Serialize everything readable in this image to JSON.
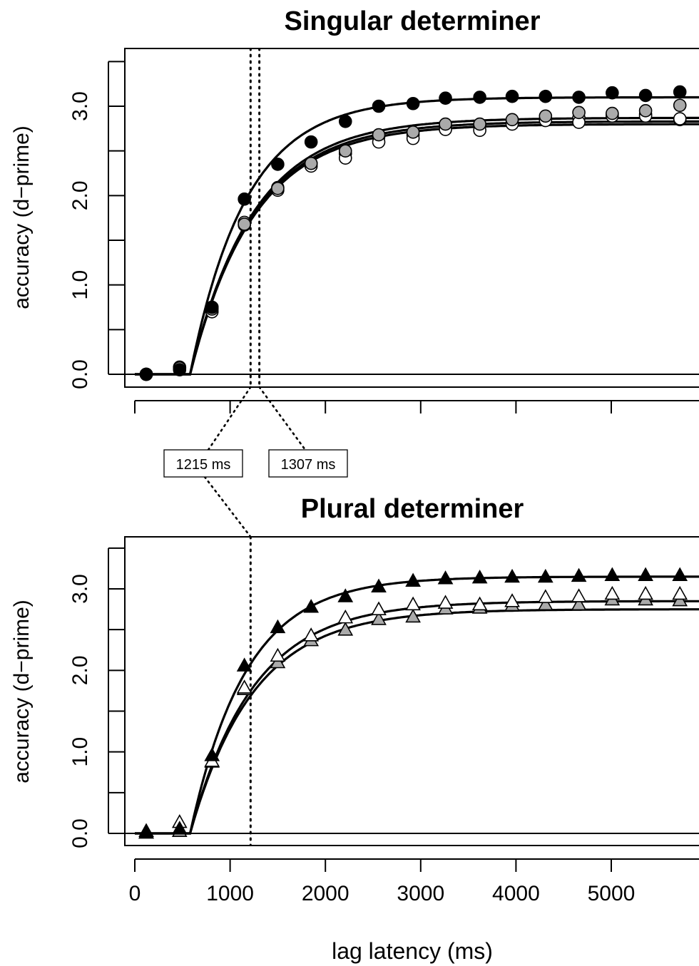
{
  "chart_data": [
    {
      "type": "line",
      "title": "Singular determiner",
      "ylabel": "accuracy (d−prime)",
      "xlabel": "",
      "xlim": [
        0,
        5850
      ],
      "ylim": [
        -0.15,
        3.65
      ],
      "yticks": [
        0.0,
        0.5,
        1.0,
        1.5,
        2.0,
        2.5,
        3.0,
        3.5
      ],
      "ytick_labels": [
        {
          "value": 0.0,
          "label": "0.0"
        },
        {
          "value": 1.0,
          "label": "1.0"
        },
        {
          "value": 2.0,
          "label": "2.0"
        },
        {
          "value": 3.0,
          "label": "3.0"
        }
      ],
      "xticks": [
        0,
        1000,
        2000,
        3000,
        4000,
        5000
      ],
      "marker": "circle",
      "vlines": [
        {
          "x": 1215,
          "label": "1215 ms"
        },
        {
          "x": 1307,
          "label": "1307 ms"
        }
      ],
      "x": [
        120,
        470,
        810,
        1150,
        1500,
        1850,
        2210,
        2560,
        2920,
        3260,
        3620,
        3960,
        4310,
        4660,
        5010,
        5360,
        5720
      ],
      "series": [
        {
          "fill": "#000000",
          "curve": {
            "asymptote": 3.1,
            "rate": 0.0017,
            "intercept": 580
          },
          "values": [
            0.0,
            0.05,
            0.75,
            1.96,
            2.35,
            2.6,
            2.83,
            3.0,
            3.03,
            3.09,
            3.1,
            3.11,
            3.11,
            3.1,
            3.15,
            3.12,
            3.16
          ]
        },
        {
          "fill": "#aaaaaa",
          "curve": {
            "asymptote": 2.87,
            "rate": 0.0015,
            "intercept": 580
          },
          "values": [
            0.0,
            0.07,
            0.73,
            1.68,
            2.08,
            2.36,
            2.5,
            2.68,
            2.71,
            2.8,
            2.8,
            2.85,
            2.89,
            2.93,
            2.92,
            2.95,
            3.01
          ]
        },
        {
          "fill": "#ffffff",
          "curve": {
            "asymptote": 2.83,
            "rate": 0.0015,
            "intercept": 580
          },
          "values": [
            0.0,
            0.08,
            0.7,
            1.67,
            2.06,
            2.33,
            2.42,
            2.6,
            2.64,
            2.74,
            2.73,
            2.8,
            2.84,
            2.82,
            2.89,
            2.89,
            2.86
          ]
        },
        {
          "fill": "#ffffff",
          "curve": {
            "asymptote": 2.8,
            "rate": 0.0015,
            "intercept": 580
          },
          "values": [
            0.0,
            0.07,
            0.75,
            1.7,
            2.09,
            2.36,
            2.47,
            2.66,
            2.68,
            2.78,
            2.79,
            2.84,
            2.86,
            2.87,
            2.91,
            2.91,
            2.85
          ]
        }
      ]
    },
    {
      "type": "line",
      "title": "Plural determiner",
      "ylabel": "accuracy (d−prime)",
      "xlabel": "lag latency (ms)",
      "xlim": [
        0,
        5850
      ],
      "ylim": [
        -0.15,
        3.65
      ],
      "yticks": [
        0.0,
        0.5,
        1.0,
        1.5,
        2.0,
        2.5,
        3.0,
        3.5
      ],
      "ytick_labels": [
        {
          "value": 0.0,
          "label": "0.0"
        },
        {
          "value": 1.0,
          "label": "1.0"
        },
        {
          "value": 2.0,
          "label": "2.0"
        },
        {
          "value": 3.0,
          "label": "3.0"
        }
      ],
      "xticks": [
        0,
        1000,
        2000,
        3000,
        4000,
        5000
      ],
      "xtick_labels": [
        "0",
        "1000",
        "2000",
        "3000",
        "4000",
        "5000"
      ],
      "marker": "triangle",
      "vlines": [
        {
          "x": 1215,
          "label": "1215 ms"
        }
      ],
      "x": [
        120,
        470,
        810,
        1150,
        1500,
        1850,
        2210,
        2560,
        2920,
        3260,
        3620,
        3960,
        4310,
        4660,
        5010,
        5360,
        5720
      ],
      "series": [
        {
          "fill": "#000000",
          "curve": {
            "asymptote": 3.15,
            "rate": 0.0017,
            "intercept": 580
          },
          "values": [
            0.0,
            0.05,
            0.95,
            2.05,
            2.52,
            2.77,
            2.9,
            3.02,
            3.09,
            3.12,
            3.13,
            3.14,
            3.14,
            3.15,
            3.16,
            3.16,
            3.16
          ]
        },
        {
          "fill": "#ffffff",
          "curve": {
            "asymptote": 2.85,
            "rate": 0.0015,
            "intercept": 580
          },
          "values": [
            0.02,
            0.13,
            0.88,
            1.78,
            2.17,
            2.42,
            2.64,
            2.74,
            2.8,
            2.82,
            2.8,
            2.84,
            2.89,
            2.9,
            2.93,
            2.93,
            2.93
          ]
        },
        {
          "fill": "#aaaaaa",
          "curve": {
            "asymptote": 2.75,
            "rate": 0.0015,
            "intercept": 580
          },
          "values": [
            0.0,
            0.02,
            0.87,
            1.76,
            2.09,
            2.36,
            2.49,
            2.62,
            2.65,
            2.75,
            2.76,
            2.79,
            2.8,
            2.8,
            2.86,
            2.86,
            2.85
          ]
        }
      ]
    }
  ]
}
